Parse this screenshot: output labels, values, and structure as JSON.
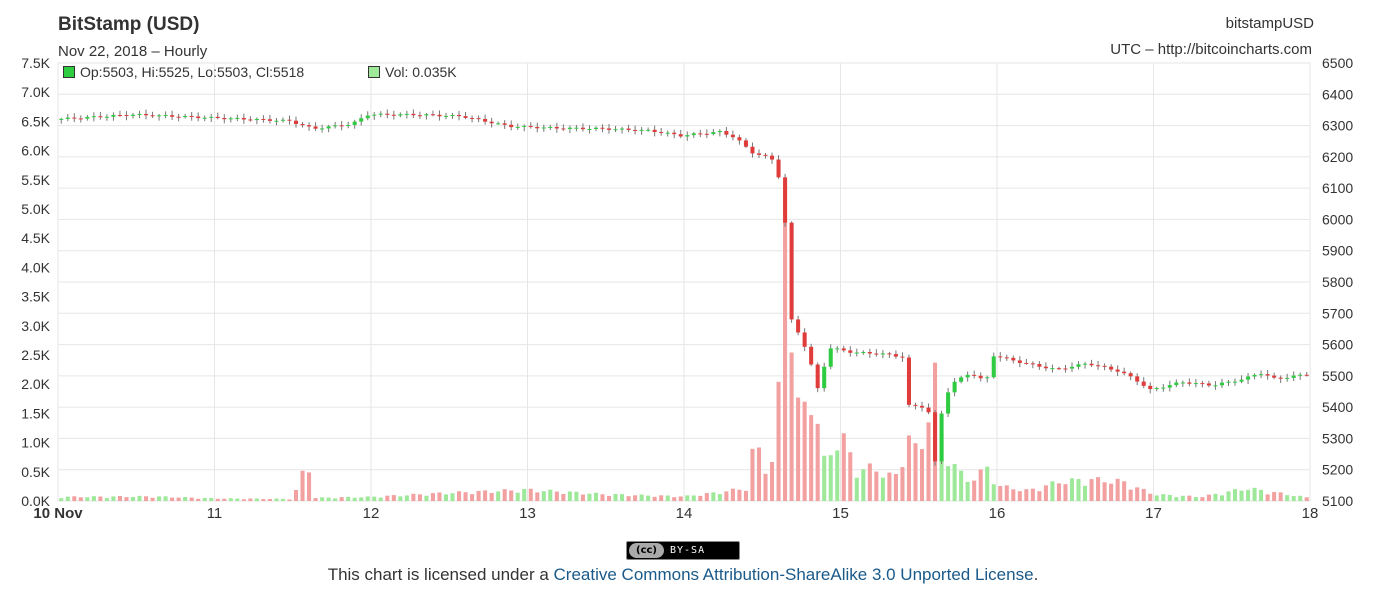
{
  "header": {
    "title": "BitStamp (USD)",
    "subtitle": "Nov 22, 2018 – Hourly",
    "series_name": "bitstampUSD",
    "source": "UTC – http://bitcoincharts.com"
  },
  "legend": {
    "ohlc": "Op:5503, Hi:5525, Lo:5503, Cl:5518",
    "volume": "Vol: 0.035K"
  },
  "colors": {
    "up": "#2ecc40",
    "down": "#e03c3c",
    "vol_up": "#9ee89a",
    "vol_down": "#f2a0a0",
    "grid": "#e6e6e6",
    "link": "#1a5a8a"
  },
  "license": {
    "badge_cc": "(cc)",
    "badge_text": "BY-SA",
    "prefix": "This chart is licensed under a ",
    "link_text": "Creative Commons Attribution-ShareAlike 3.0 Unported License",
    "suffix": "."
  },
  "chart_data": {
    "type": "candlestick",
    "grid": true,
    "x_ticks": [
      {
        "label": "10 Nov",
        "day": 10,
        "bold": true
      },
      {
        "label": "11",
        "day": 11
      },
      {
        "label": "12",
        "day": 12
      },
      {
        "label": "13",
        "day": 13
      },
      {
        "label": "14",
        "day": 14
      },
      {
        "label": "15",
        "day": 15
      },
      {
        "label": "16",
        "day": 16
      },
      {
        "label": "17",
        "day": 17
      },
      {
        "label": "18",
        "day": 18
      }
    ],
    "xlim": [
      10,
      18
    ],
    "price_axis": {
      "side": "right",
      "ylim": [
        5100,
        6500
      ],
      "ticks": [
        "6500",
        "6400",
        "6300",
        "6200",
        "6100",
        "6000",
        "5900",
        "5800",
        "5700",
        "5600",
        "5500",
        "5400",
        "5300",
        "5200",
        "5100"
      ]
    },
    "volume_axis": {
      "side": "left",
      "ylim": [
        0,
        7500
      ],
      "ticks": [
        "7.5K",
        "7.0K",
        "6.5K",
        "6.0K",
        "5.5K",
        "5.0K",
        "4.5K",
        "4.0K",
        "3.5K",
        "3.0K",
        "2.5K",
        "2.0K",
        "1.5K",
        "1.0K",
        "0.5K",
        "0.0K"
      ]
    },
    "price_keypoints": [
      [
        10.0,
        6320
      ],
      [
        10.5,
        6335
      ],
      [
        11.0,
        6325
      ],
      [
        11.5,
        6315
      ],
      [
        11.65,
        6290
      ],
      [
        11.9,
        6305
      ],
      [
        12.0,
        6335
      ],
      [
        12.3,
        6335
      ],
      [
        12.6,
        6330
      ],
      [
        12.9,
        6298
      ],
      [
        13.2,
        6292
      ],
      [
        13.5,
        6290
      ],
      [
        13.8,
        6284
      ],
      [
        14.0,
        6268
      ],
      [
        14.25,
        6280
      ],
      [
        14.35,
        6262
      ],
      [
        14.45,
        6215
      ],
      [
        14.58,
        6195
      ],
      [
        14.62,
        6150
      ],
      [
        14.66,
        6050
      ],
      [
        14.7,
        5685
      ],
      [
        14.75,
        5640
      ],
      [
        14.82,
        5565
      ],
      [
        14.87,
        5450
      ],
      [
        14.95,
        5590
      ],
      [
        15.1,
        5575
      ],
      [
        15.3,
        5570
      ],
      [
        15.42,
        5560
      ],
      [
        15.45,
        5405
      ],
      [
        15.58,
        5400
      ],
      [
        15.62,
        5205
      ],
      [
        15.68,
        5430
      ],
      [
        15.75,
        5480
      ],
      [
        15.85,
        5510
      ],
      [
        15.95,
        5480
      ],
      [
        16.0,
        5565
      ],
      [
        16.2,
        5540
      ],
      [
        16.4,
        5520
      ],
      [
        16.6,
        5540
      ],
      [
        16.8,
        5515
      ],
      [
        16.9,
        5490
      ],
      [
        17.0,
        5455
      ],
      [
        17.2,
        5480
      ],
      [
        17.4,
        5470
      ],
      [
        17.6,
        5490
      ],
      [
        17.7,
        5510
      ],
      [
        17.8,
        5490
      ],
      [
        18.0,
        5505
      ]
    ],
    "volume_keypoints": [
      [
        10.0,
        80
      ],
      [
        10.6,
        90
      ],
      [
        11.0,
        50
      ],
      [
        11.5,
        40
      ],
      [
        11.6,
        820
      ],
      [
        11.62,
        60
      ],
      [
        12.0,
        80
      ],
      [
        12.5,
        160
      ],
      [
        13.0,
        220
      ],
      [
        13.5,
        130
      ],
      [
        14.0,
        90
      ],
      [
        14.2,
        160
      ],
      [
        14.4,
        250
      ],
      [
        14.45,
        1150
      ],
      [
        14.55,
        500
      ],
      [
        14.6,
        1600
      ],
      [
        14.65,
        6900
      ],
      [
        14.7,
        2500
      ],
      [
        14.75,
        1350
      ],
      [
        14.8,
        2400
      ],
      [
        14.85,
        1600
      ],
      [
        14.9,
        700
      ],
      [
        15.0,
        1350
      ],
      [
        15.1,
        600
      ],
      [
        15.2,
        650
      ],
      [
        15.35,
        450
      ],
      [
        15.45,
        1400
      ],
      [
        15.5,
        700
      ],
      [
        15.6,
        2550
      ],
      [
        15.65,
        1100
      ],
      [
        15.8,
        380
      ],
      [
        15.95,
        650
      ],
      [
        16.0,
        300
      ],
      [
        16.2,
        200
      ],
      [
        16.4,
        380
      ],
      [
        16.6,
        420
      ],
      [
        16.8,
        380
      ],
      [
        17.0,
        130
      ],
      [
        17.3,
        80
      ],
      [
        17.6,
        250
      ],
      [
        18.0,
        60
      ]
    ]
  }
}
